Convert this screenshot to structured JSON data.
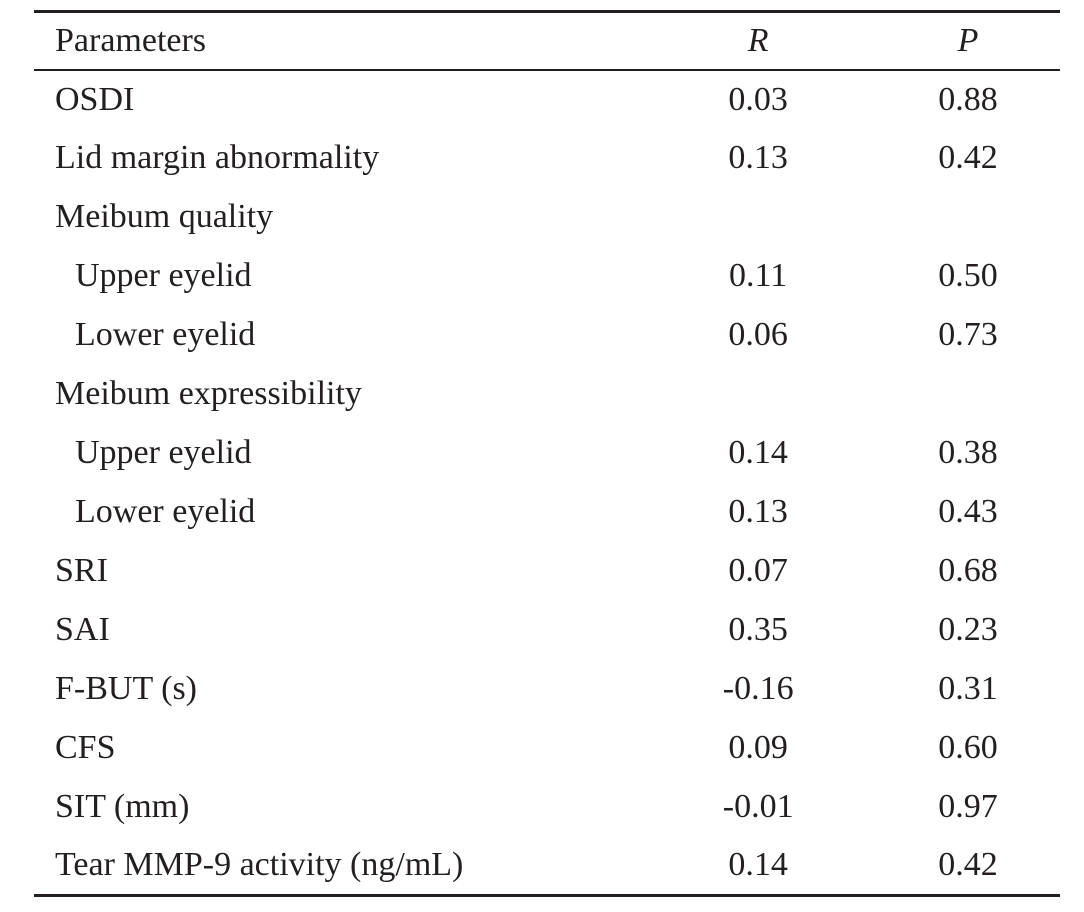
{
  "table": {
    "headers": {
      "parameters": "Parameters",
      "r": "R",
      "p": "P"
    },
    "rows": [
      {
        "label": "OSDI",
        "r": "0.03",
        "p": "0.88",
        "indent": false
      },
      {
        "label": "Lid margin abnormality",
        "r": "0.13",
        "p": "0.42",
        "indent": false
      },
      {
        "label": "Meibum quality",
        "r": "",
        "p": "",
        "indent": false
      },
      {
        "label": "Upper eyelid",
        "r": "0.11",
        "p": "0.50",
        "indent": true
      },
      {
        "label": "Lower eyelid",
        "r": "0.06",
        "p": "0.73",
        "indent": true
      },
      {
        "label": "Meibum expressibility",
        "r": "",
        "p": "",
        "indent": false
      },
      {
        "label": "Upper eyelid",
        "r": "0.14",
        "p": "0.38",
        "indent": true
      },
      {
        "label": "Lower eyelid",
        "r": "0.13",
        "p": "0.43",
        "indent": true
      },
      {
        "label": "SRI",
        "r": "0.07",
        "p": "0.68",
        "indent": false
      },
      {
        "label": "SAI",
        "r": "0.35",
        "p": "0.23",
        "indent": false
      },
      {
        "label": "F-BUT (s)",
        "r": "-0.16",
        "p": "0.31",
        "indent": false
      },
      {
        "label": "CFS",
        "r": "0.09",
        "p": "0.60",
        "indent": false
      },
      {
        "label": "SIT (mm)",
        "r": "-0.01",
        "p": "0.97",
        "indent": false
      },
      {
        "label": "Tear MMP-9 activity (ng/mL)",
        "r": "0.14",
        "p": "0.42",
        "indent": false
      }
    ]
  }
}
